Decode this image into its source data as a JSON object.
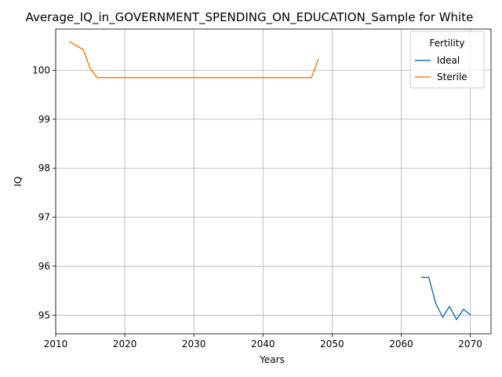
{
  "chart_data": {
    "type": "line",
    "title": "Average_IQ_in_GOVERNMENT_SPENDING_ON_EDUCATION_Sample for White",
    "xlabel": "Years",
    "ylabel": "IQ",
    "xlim": [
      2010.0,
      2073.0
    ],
    "ylim": [
      94.62,
      100.84
    ],
    "xticks": [
      2010,
      2020,
      2030,
      2040,
      2050,
      2060,
      2070
    ],
    "yticks": [
      95,
      96,
      97,
      98,
      99,
      100
    ],
    "grid": true,
    "legend": {
      "title": "Fertility",
      "placement": "top-right"
    },
    "series": [
      {
        "name": "Ideal",
        "color": "#1f77b4",
        "x": [
          2063,
          2064,
          2065,
          2066,
          2067,
          2068,
          2069,
          2070
        ],
        "y": [
          95.77,
          95.77,
          95.24,
          94.96,
          95.18,
          94.91,
          95.12,
          95.01
        ]
      },
      {
        "name": "Sterile",
        "color": "#ff7f0e",
        "x": [
          2012,
          2013,
          2014,
          2015,
          2016,
          2017,
          2018,
          2019,
          2020,
          2021,
          2022,
          2023,
          2024,
          2025,
          2026,
          2027,
          2028,
          2029,
          2030,
          2031,
          2032,
          2033,
          2034,
          2035,
          2036,
          2037,
          2038,
          2039,
          2040,
          2041,
          2042,
          2043,
          2044,
          2045,
          2046,
          2047,
          2048
        ],
        "y": [
          100.58,
          100.5,
          100.42,
          100.03,
          99.85,
          99.85,
          99.85,
          99.85,
          99.85,
          99.85,
          99.85,
          99.85,
          99.85,
          99.85,
          99.85,
          99.85,
          99.85,
          99.85,
          99.85,
          99.85,
          99.85,
          99.85,
          99.85,
          99.85,
          99.85,
          99.85,
          99.85,
          99.85,
          99.85,
          99.85,
          99.85,
          99.85,
          99.85,
          99.85,
          99.85,
          99.85,
          100.22
        ]
      }
    ]
  }
}
